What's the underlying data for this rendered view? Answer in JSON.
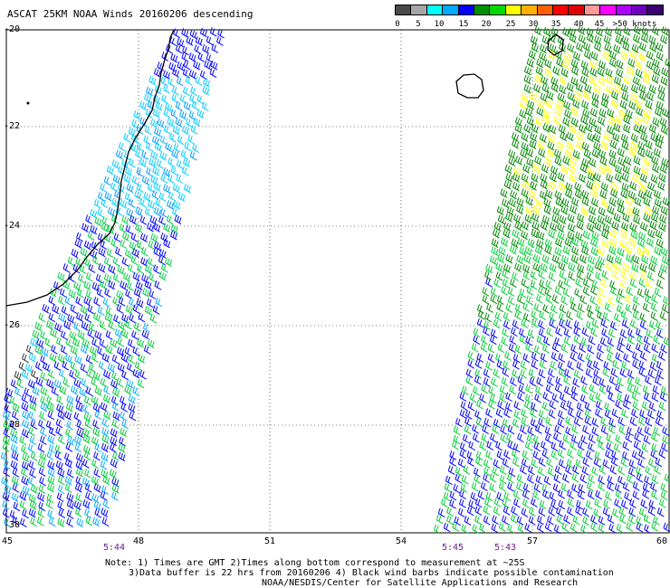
{
  "header": {
    "title": "ASCAT 25KM NOAA Winds 20160206 descending"
  },
  "legend": {
    "colors": [
      "#4a4a4a",
      "#a6a6a6",
      "#00ffff",
      "#00aaff",
      "#0000ff",
      "#009000",
      "#00d800",
      "#ffff00",
      "#ffb000",
      "#ff6000",
      "#ff0000",
      "#e00000",
      "#ff9999",
      "#ff00ff",
      "#b000ff",
      "#7000c0",
      "#3a0070"
    ],
    "labels": [
      "0",
      "5",
      "10",
      "15",
      "20",
      "25",
      "30",
      "35",
      "40",
      "45",
      ">50 knots"
    ]
  },
  "map": {
    "lat_labels": [
      "-20",
      "-22",
      "-24",
      "-26",
      "-28",
      "-30"
    ],
    "lon_labels": [
      "45",
      "48",
      "51",
      "54",
      "57",
      "60"
    ],
    "pass_times": [
      "5:44",
      "5:45",
      "5:43"
    ]
  },
  "notes": {
    "line1": "Note: 1) Times are GMT 2)Times along bottom correspond to measurement at ~25S",
    "line2": "3)Data buffer is 22 hrs from 20160206 4) Black wind barbs indicate possible contamination",
    "line3": "NOAA/NESDIS/Center for Satellite Applications and Research"
  }
}
